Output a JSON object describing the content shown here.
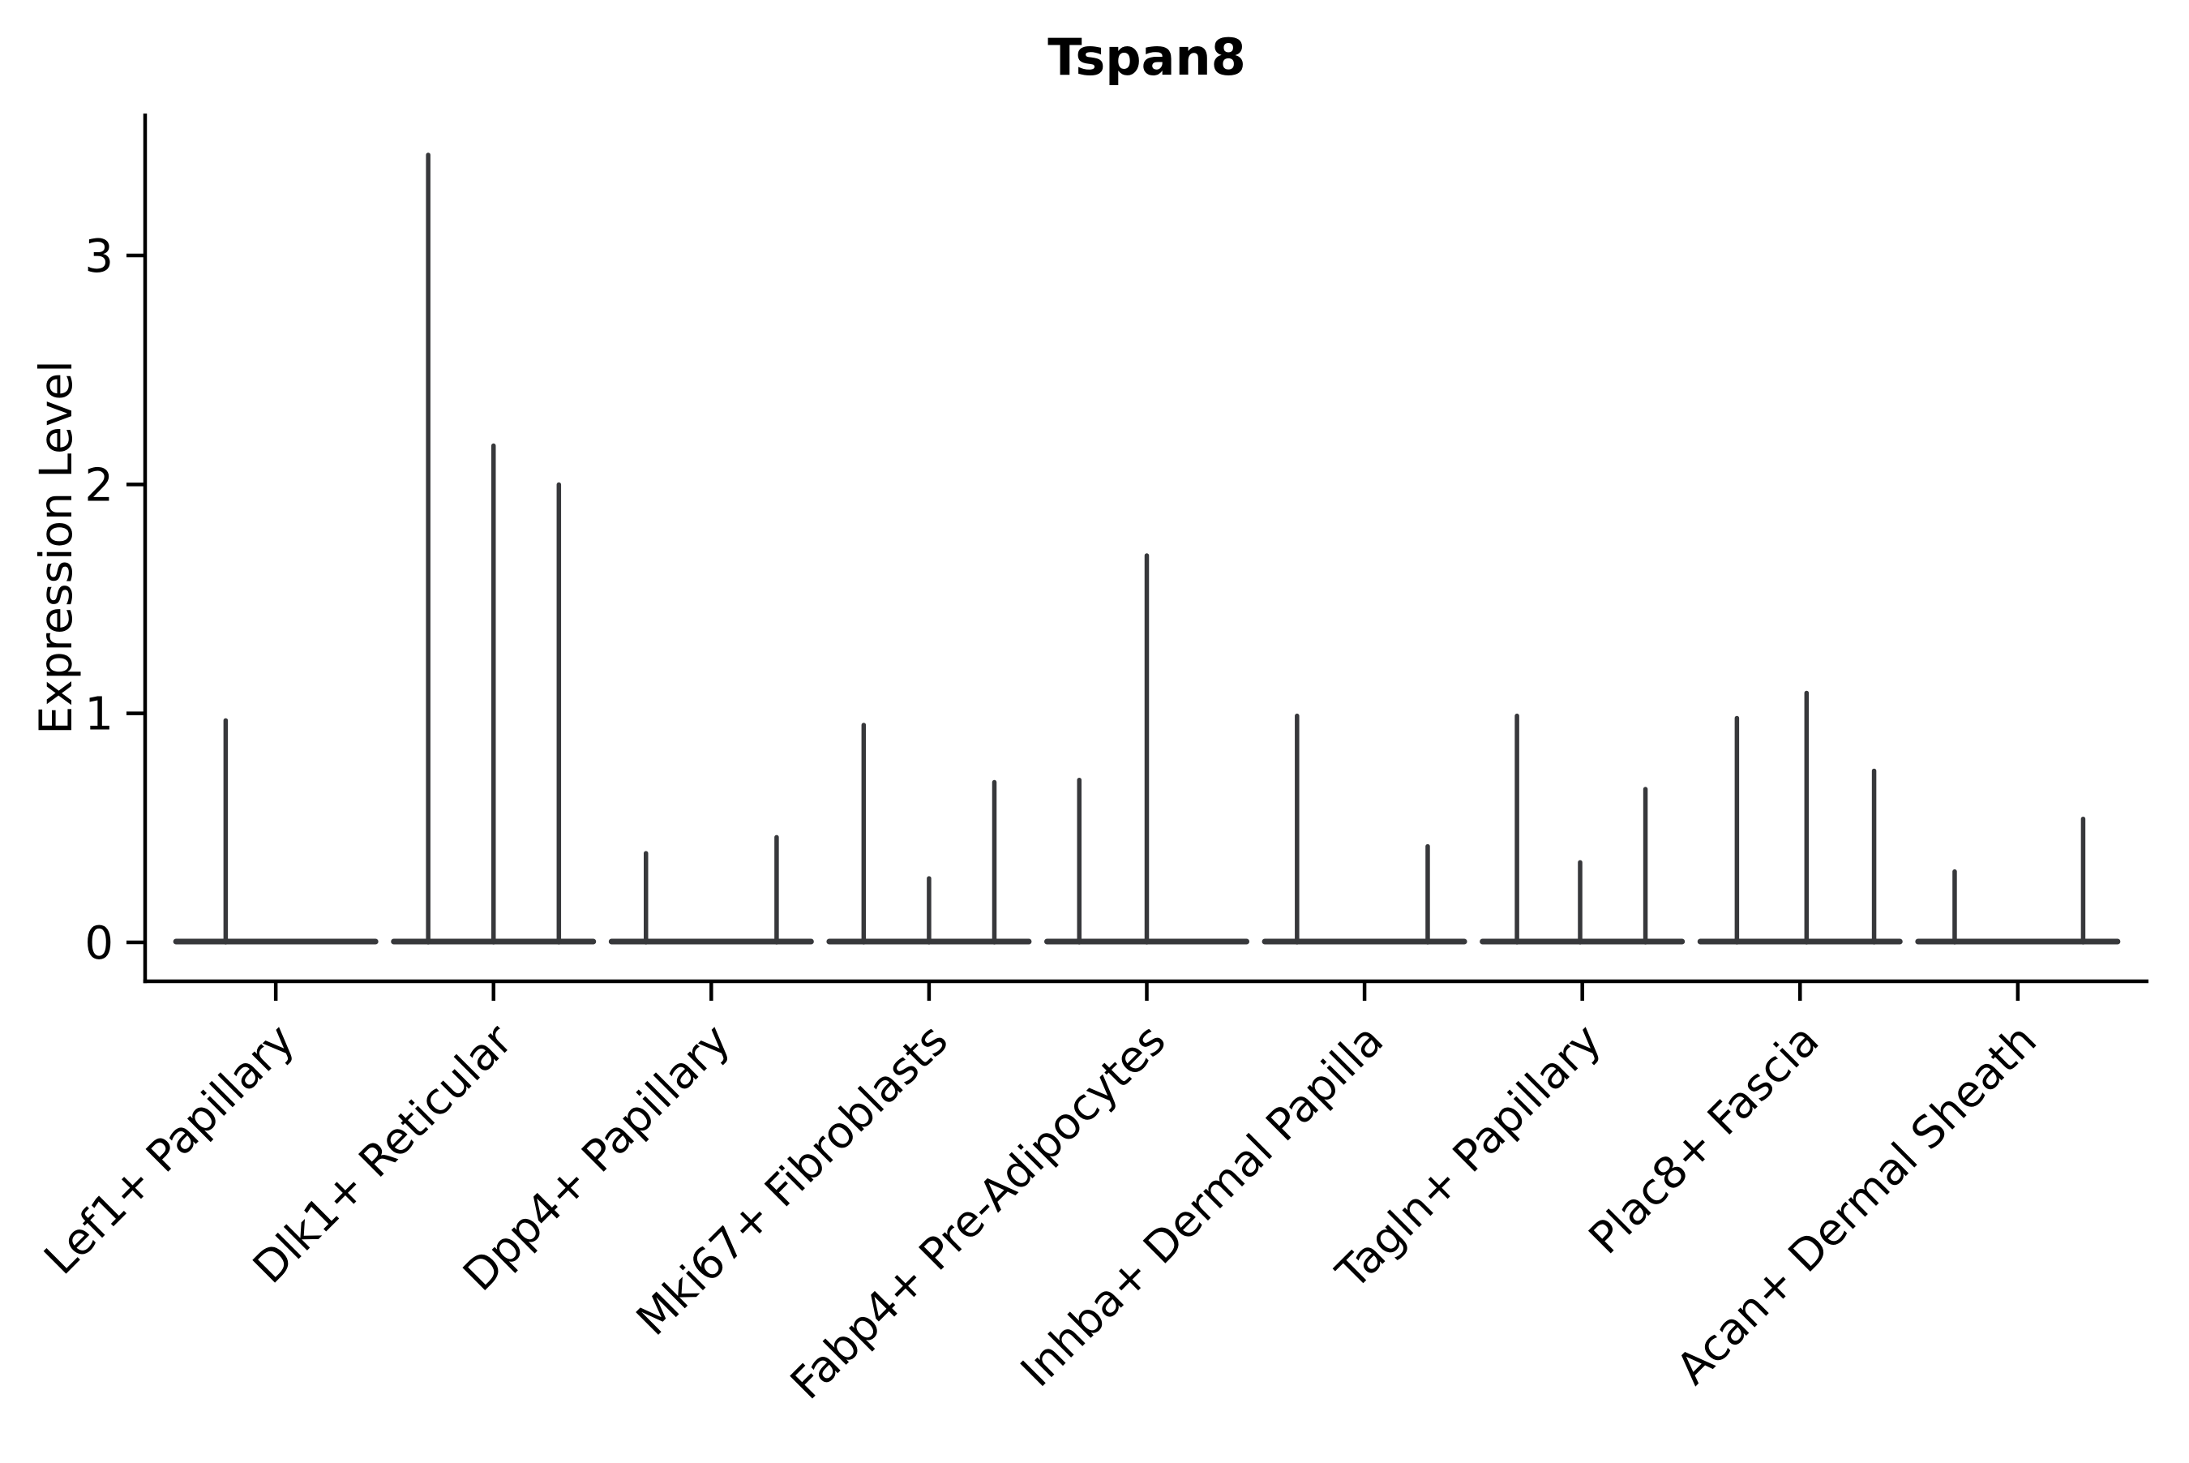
{
  "page": {
    "background": "#ffffff"
  },
  "chart_data": {
    "type": "violin",
    "title": "Tspan8",
    "ylabel": "Expression Level",
    "xlabel": "",
    "yticks": [
      0,
      1,
      2,
      3
    ],
    "ylim": [
      -0.17,
      3.62
    ],
    "grid": false,
    "legend": "none",
    "violin_color": "#37383b",
    "axis_color": "#000000",
    "text_color": "#000000",
    "violin_halfwidth": 0.458,
    "categories": [
      "Lef1+ Papillary",
      "Dlk1+ Reticular",
      "Dpp4+ Papillary",
      "Mki67+ Fibroblasts",
      "Fabp4+ Pre-Adipocytes",
      "Inhba+ Dermal Papilla",
      "Tagln+ Papillary",
      "Plac8+ Fascia",
      "Acan+ Dermal Sheath"
    ],
    "series": [
      {
        "name": "Lef1+ Papillary",
        "spikes": [
          {
            "offset": -0.23,
            "value": 0.98
          }
        ]
      },
      {
        "name": "Dlk1+ Reticular",
        "spikes": [
          {
            "offset": -0.3,
            "value": 3.45
          },
          {
            "offset": 0.0,
            "value": 2.18
          },
          {
            "offset": 0.3,
            "value": 2.01
          }
        ]
      },
      {
        "name": "Dpp4+ Papillary",
        "spikes": [
          {
            "offset": -0.3,
            "value": 0.4
          },
          {
            "offset": 0.3,
            "value": 0.47
          }
        ]
      },
      {
        "name": "Mki67+ Fibroblasts",
        "spikes": [
          {
            "offset": -0.3,
            "value": 0.96
          },
          {
            "offset": 0.0,
            "value": 0.29
          },
          {
            "offset": 0.3,
            "value": 0.71
          }
        ]
      },
      {
        "name": "Fabp4+ Pre-Adipocytes",
        "spikes": [
          {
            "offset": -0.31,
            "value": 0.72
          },
          {
            "offset": 0.0,
            "value": 1.7
          }
        ]
      },
      {
        "name": "Inhba+ Dermal Papilla",
        "spikes": [
          {
            "offset": -0.31,
            "value": 1.0
          },
          {
            "offset": 0.29,
            "value": 0.43
          }
        ]
      },
      {
        "name": "Tagln+ Papillary",
        "spikes": [
          {
            "offset": -0.3,
            "value": 1.0
          },
          {
            "offset": -0.01,
            "value": 0.36
          },
          {
            "offset": 0.29,
            "value": 0.68
          }
        ]
      },
      {
        "name": "Plac8+ Fascia",
        "spikes": [
          {
            "offset": -0.29,
            "value": 0.99
          },
          {
            "offset": 0.03,
            "value": 1.1
          },
          {
            "offset": 0.34,
            "value": 0.76
          }
        ]
      },
      {
        "name": "Acan+ Dermal Sheath",
        "spikes": [
          {
            "offset": -0.29,
            "value": 0.32
          },
          {
            "offset": 0.3,
            "value": 0.55
          }
        ]
      }
    ]
  }
}
